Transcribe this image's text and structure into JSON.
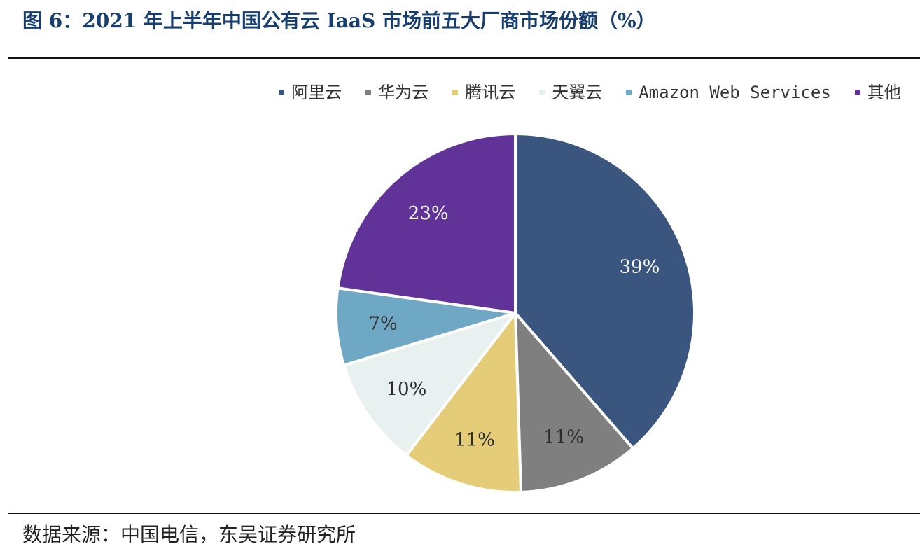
{
  "figure": {
    "title": "图 6：2021 年上半年中国公有云 IaaS 市场前五大厂商市场份额（%）",
    "source": "数据来源：中国电信，东吴证券研究所"
  },
  "chart_data": {
    "type": "pie",
    "title": "图 6：2021 年上半年中国公有云 IaaS 市场前五大厂商市场份额（%）",
    "unit": "%",
    "legend_position": "top",
    "start_angle": "12 o'clock, clockwise",
    "slices": [
      {
        "label": "阿里云",
        "value": 39,
        "data_label": "39%",
        "color": "#3a567f",
        "label_color": "#ffffff"
      },
      {
        "label": "华为云",
        "value": 11,
        "data_label": "11%",
        "color": "#7f7f7f",
        "label_color": "#2b2b2b"
      },
      {
        "label": "腾讯云",
        "value": 11,
        "data_label": "11%",
        "color": "#e4cc78",
        "label_color": "#2b2b2b"
      },
      {
        "label": "天翼云",
        "value": 10,
        "data_label": "10%",
        "color": "#e8f1ef",
        "label_color": "#2b2b2b"
      },
      {
        "label": "Amazon Web Services",
        "value": 7,
        "data_label": "7%",
        "color": "#6fa8c4",
        "label_color": "#2b2b2b"
      },
      {
        "label": "其他",
        "value": 23,
        "data_label": "23%",
        "color": "#613399",
        "label_color": "#ffffff"
      }
    ]
  }
}
